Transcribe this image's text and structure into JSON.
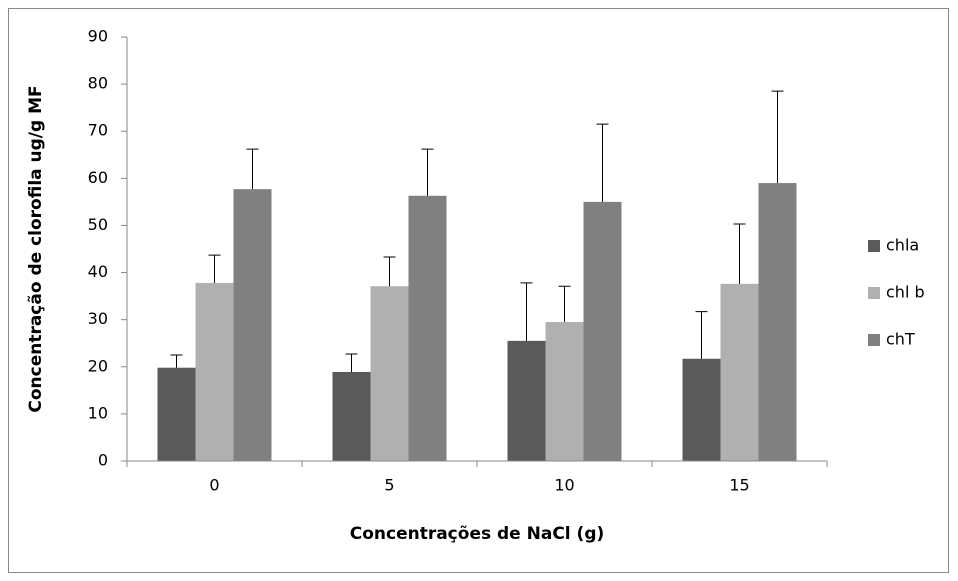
{
  "chart_data": {
    "type": "bar",
    "x_label": "Concentrações de NaCl (g)",
    "y_label": "Concentração de clorofila ug/g MF",
    "categories": [
      "0",
      "5",
      "10",
      "15"
    ],
    "series": [
      {
        "name": "chla",
        "color": "#5a5a5a",
        "values": [
          19.8,
          18.9,
          25.5,
          21.7
        ],
        "errors": [
          2.7,
          3.8,
          12.3,
          10.0
        ]
      },
      {
        "name": "chl b",
        "color": "#b0b0b0",
        "values": [
          37.8,
          37.1,
          29.5,
          37.6
        ],
        "errors": [
          5.9,
          6.2,
          7.6,
          12.7
        ]
      },
      {
        "name": "chT",
        "color": "#808080",
        "values": [
          57.7,
          56.3,
          55.0,
          59.0
        ],
        "errors": [
          8.5,
          9.9,
          16.5,
          19.5
        ]
      }
    ],
    "ylim": [
      0,
      90
    ],
    "yticks": [
      0,
      10,
      20,
      30,
      40,
      50,
      60,
      70,
      80,
      90
    ],
    "grid": false,
    "legend": "right"
  }
}
